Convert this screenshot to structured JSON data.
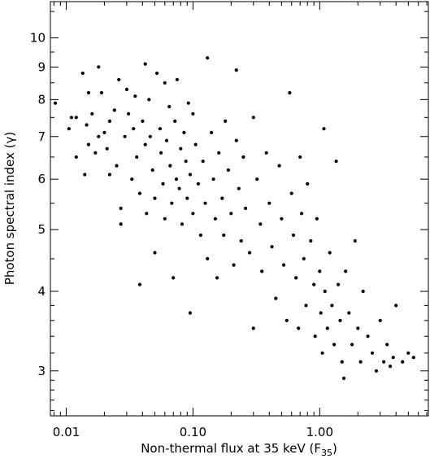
{
  "chart_data": {
    "type": "scatter",
    "xlabel": "Non-thermal flux at 35 keV (F",
    "xlabel_sub": "35",
    "xlabel_end": ")",
    "ylabel": "Photon spectral index (γ)",
    "x_scale": "log",
    "y_scale": "log",
    "xlim": [
      0.0075,
      7.2
    ],
    "ylim": [
      2.55,
      11.4
    ],
    "x_major_ticks": [
      {
        "value": 0.01,
        "label": "0.01"
      },
      {
        "value": 0.1,
        "label": "0.10"
      },
      {
        "value": 1,
        "label": "1.00"
      }
    ],
    "y_major_ticks": [
      {
        "value": 3,
        "label": "3"
      },
      {
        "value": 4,
        "label": "4"
      },
      {
        "value": 5,
        "label": "5"
      },
      {
        "value": 6,
        "label": "6"
      },
      {
        "value": 7,
        "label": "7"
      },
      {
        "value": 8,
        "label": "8"
      },
      {
        "value": 9,
        "label": "9"
      },
      {
        "value": 10,
        "label": "10"
      }
    ],
    "x_minor_ticks": [
      0.008,
      0.009,
      0.02,
      0.03,
      0.04,
      0.05,
      0.06,
      0.07,
      0.08,
      0.09,
      0.2,
      0.3,
      0.4,
      0.5,
      0.6,
      0.7,
      0.8,
      0.9,
      2,
      3,
      4,
      5,
      6,
      7
    ],
    "y_minor_ticks": [
      2.6,
      2.7,
      2.8,
      2.9,
      3.2,
      3.4,
      3.6,
      3.8,
      4.5,
      5.5,
      6.5,
      7.5,
      8.5,
      9.5,
      11
    ],
    "grid": false,
    "legend": "none",
    "series": [
      {
        "marker": "filled-circle",
        "color": "#000000",
        "points": [
          [
            0.0082,
            7.9
          ],
          [
            0.0105,
            7.2
          ],
          [
            0.011,
            7.5
          ],
          [
            0.012,
            7.5
          ],
          [
            0.012,
            6.5
          ],
          [
            0.0135,
            8.8
          ],
          [
            0.014,
            6.1
          ],
          [
            0.0145,
            7.3
          ],
          [
            0.015,
            8.2
          ],
          [
            0.015,
            6.8
          ],
          [
            0.016,
            7.6
          ],
          [
            0.017,
            6.6
          ],
          [
            0.018,
            9.0
          ],
          [
            0.018,
            7.0
          ],
          [
            0.019,
            8.2
          ],
          [
            0.02,
            7.1
          ],
          [
            0.021,
            6.7
          ],
          [
            0.022,
            7.4
          ],
          [
            0.022,
            6.1
          ],
          [
            0.024,
            7.7
          ],
          [
            0.025,
            6.3
          ],
          [
            0.026,
            8.6
          ],
          [
            0.027,
            5.4
          ],
          [
            0.027,
            5.1
          ],
          [
            0.029,
            7.0
          ],
          [
            0.03,
            8.3
          ],
          [
            0.031,
            7.6
          ],
          [
            0.033,
            6.0
          ],
          [
            0.034,
            7.2
          ],
          [
            0.035,
            8.1
          ],
          [
            0.036,
            6.5
          ],
          [
            0.038,
            5.7
          ],
          [
            0.038,
            4.1
          ],
          [
            0.04,
            7.4
          ],
          [
            0.042,
            9.1
          ],
          [
            0.042,
            6.8
          ],
          [
            0.043,
            5.3
          ],
          [
            0.045,
            8.0
          ],
          [
            0.046,
            7.0
          ],
          [
            0.048,
            6.2
          ],
          [
            0.05,
            5.6
          ],
          [
            0.05,
            4.6
          ],
          [
            0.052,
            8.8
          ],
          [
            0.055,
            7.2
          ],
          [
            0.056,
            6.6
          ],
          [
            0.058,
            5.9
          ],
          [
            0.06,
            8.5
          ],
          [
            0.06,
            5.2
          ],
          [
            0.062,
            6.9
          ],
          [
            0.065,
            7.8
          ],
          [
            0.066,
            6.3
          ],
          [
            0.068,
            5.5
          ],
          [
            0.07,
            4.2
          ],
          [
            0.072,
            7.4
          ],
          [
            0.074,
            6.0
          ],
          [
            0.075,
            8.6
          ],
          [
            0.078,
            5.8
          ],
          [
            0.08,
            6.7
          ],
          [
            0.082,
            5.1
          ],
          [
            0.085,
            7.1
          ],
          [
            0.088,
            6.4
          ],
          [
            0.09,
            5.6
          ],
          [
            0.092,
            7.9
          ],
          [
            0.095,
            6.1
          ],
          [
            0.095,
            3.7
          ],
          [
            0.1,
            7.6
          ],
          [
            0.1,
            5.3
          ],
          [
            0.105,
            6.8
          ],
          [
            0.11,
            5.9
          ],
          [
            0.115,
            4.9
          ],
          [
            0.12,
            6.4
          ],
          [
            0.125,
            5.5
          ],
          [
            0.13,
            9.3
          ],
          [
            0.13,
            4.5
          ],
          [
            0.14,
            7.1
          ],
          [
            0.145,
            6.0
          ],
          [
            0.15,
            5.2
          ],
          [
            0.155,
            4.2
          ],
          [
            0.16,
            6.6
          ],
          [
            0.17,
            5.6
          ],
          [
            0.175,
            4.9
          ],
          [
            0.18,
            7.4
          ],
          [
            0.19,
            6.2
          ],
          [
            0.2,
            5.3
          ],
          [
            0.21,
            4.4
          ],
          [
            0.22,
            8.9
          ],
          [
            0.22,
            6.9
          ],
          [
            0.23,
            5.8
          ],
          [
            0.24,
            4.8
          ],
          [
            0.25,
            6.5
          ],
          [
            0.26,
            5.4
          ],
          [
            0.28,
            4.6
          ],
          [
            0.3,
            7.5
          ],
          [
            0.3,
            3.5
          ],
          [
            0.32,
            6.0
          ],
          [
            0.34,
            5.1
          ],
          [
            0.35,
            4.3
          ],
          [
            0.38,
            6.6
          ],
          [
            0.4,
            5.5
          ],
          [
            0.42,
            4.7
          ],
          [
            0.45,
            3.9
          ],
          [
            0.48,
            6.3
          ],
          [
            0.5,
            5.2
          ],
          [
            0.52,
            4.4
          ],
          [
            0.55,
            3.6
          ],
          [
            0.58,
            8.2
          ],
          [
            0.6,
            5.7
          ],
          [
            0.62,
            4.9
          ],
          [
            0.65,
            4.2
          ],
          [
            0.68,
            3.5
          ],
          [
            0.7,
            6.5
          ],
          [
            0.72,
            5.3
          ],
          [
            0.75,
            4.5
          ],
          [
            0.78,
            3.8
          ],
          [
            0.8,
            5.9
          ],
          [
            0.85,
            4.8
          ],
          [
            0.9,
            4.1
          ],
          [
            0.92,
            3.4
          ],
          [
            0.95,
            5.2
          ],
          [
            1.0,
            4.3
          ],
          [
            1.02,
            3.7
          ],
          [
            1.05,
            3.2
          ],
          [
            1.08,
            7.2
          ],
          [
            1.1,
            4.0
          ],
          [
            1.15,
            3.5
          ],
          [
            1.2,
            4.6
          ],
          [
            1.25,
            3.8
          ],
          [
            1.3,
            3.3
          ],
          [
            1.35,
            6.4
          ],
          [
            1.4,
            4.1
          ],
          [
            1.45,
            3.6
          ],
          [
            1.5,
            3.1
          ],
          [
            1.55,
            2.92
          ],
          [
            1.6,
            4.3
          ],
          [
            1.7,
            3.7
          ],
          [
            1.8,
            3.3
          ],
          [
            1.9,
            4.8
          ],
          [
            2.0,
            3.5
          ],
          [
            2.1,
            3.1
          ],
          [
            2.2,
            4.0
          ],
          [
            2.4,
            3.4
          ],
          [
            2.6,
            3.2
          ],
          [
            2.8,
            3.0
          ],
          [
            3.0,
            3.6
          ],
          [
            3.2,
            3.1
          ],
          [
            3.4,
            3.3
          ],
          [
            3.6,
            3.05
          ],
          [
            3.8,
            3.15
          ],
          [
            4.0,
            3.8
          ],
          [
            4.5,
            3.1
          ],
          [
            5.0,
            3.2
          ],
          [
            5.5,
            3.15
          ]
        ]
      }
    ]
  }
}
